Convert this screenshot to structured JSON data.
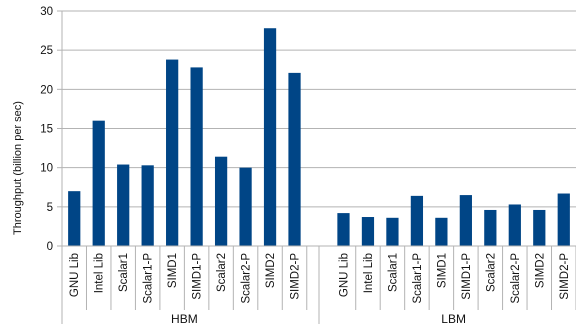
{
  "chart_data": {
    "type": "bar",
    "ylabel": "Throughput (billion per sec)",
    "ylim": [
      0,
      30
    ],
    "yticks": [
      0,
      5,
      10,
      15,
      20,
      25,
      30
    ],
    "grid": true,
    "bar_color": "#004586",
    "grid_color": "#b3b3b3",
    "groups": [
      {
        "name": "HBM",
        "categories": [
          "GNU Lib",
          "Intel Lib",
          "Scalar1",
          "Scalar1-P",
          "SIMD1",
          "SIMD1-P",
          "Scalar2",
          "Scalar2-P",
          "SIMD2",
          "SIMD2-P"
        ],
        "values": [
          7.0,
          16.0,
          10.4,
          10.3,
          23.8,
          22.8,
          11.4,
          10.0,
          27.8,
          22.1
        ]
      },
      {
        "name": "LBM",
        "categories": [
          "GNU Lib",
          "Intel Lib",
          "Scalar1",
          "Scalar1-P",
          "SIMD1",
          "SIMD1-P",
          "Scalar2",
          "Scalar2-P",
          "SIMD2",
          "SIMD2-P"
        ],
        "values": [
          4.2,
          3.7,
          3.6,
          6.4,
          3.6,
          6.5,
          4.6,
          5.3,
          4.6,
          6.7
        ]
      }
    ]
  }
}
